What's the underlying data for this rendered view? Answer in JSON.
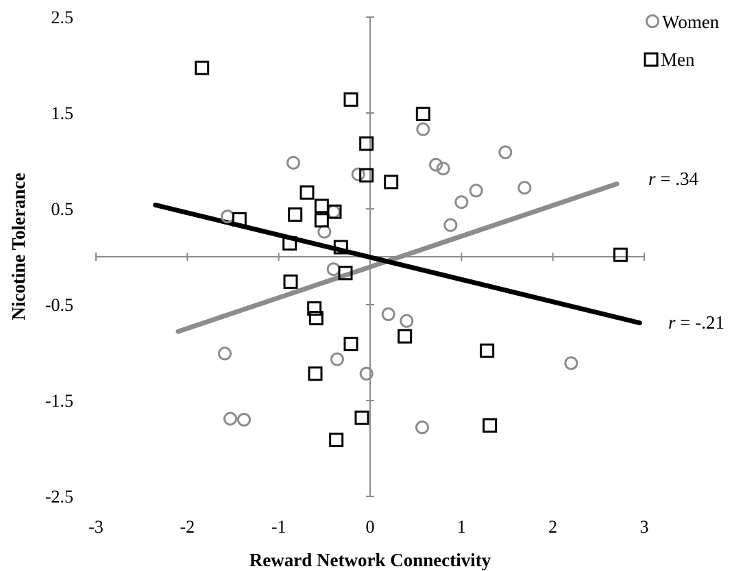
{
  "chart_data": {
    "type": "scatter",
    "xlabel": "Reward Network Connectivity",
    "ylabel": "Nicotine Tolerance",
    "xlim": [
      -3,
      3
    ],
    "ylim": [
      -2.5,
      2.5
    ],
    "x_ticks": [
      -3,
      -2,
      -1,
      0,
      1,
      2,
      3
    ],
    "y_ticks": [
      2.5,
      1.5,
      0.5,
      -0.5,
      -1.5,
      -2.5
    ],
    "x_tick_labels": [
      "-3",
      "-2",
      "-1",
      "0",
      "1",
      "2",
      "3"
    ],
    "y_tick_labels": [
      "2.5",
      "1.5",
      "0.5",
      "-0.5",
      "-1.5",
      "-2.5"
    ],
    "grid": false,
    "legend_position": "top-right",
    "series": [
      {
        "name": "Women",
        "marker": "circle",
        "color": "#8c8c8c",
        "points": [
          [
            -0.84,
            0.98
          ],
          [
            -1.56,
            0.42
          ],
          [
            -0.5,
            0.26
          ],
          [
            -0.4,
            0.47
          ],
          [
            -0.13,
            0.86
          ],
          [
            0.58,
            1.33
          ],
          [
            0.72,
            0.96
          ],
          [
            0.8,
            0.92
          ],
          [
            1.48,
            1.09
          ],
          [
            1.16,
            0.69
          ],
          [
            1.0,
            0.57
          ],
          [
            0.88,
            0.33
          ],
          [
            1.69,
            0.72
          ],
          [
            -0.4,
            -0.13
          ],
          [
            0.2,
            -0.6
          ],
          [
            0.4,
            -0.67
          ],
          [
            -0.36,
            -1.07
          ],
          [
            -1.59,
            -1.01
          ],
          [
            -0.04,
            -1.22
          ],
          [
            2.2,
            -1.11
          ],
          [
            -1.53,
            -1.69
          ],
          [
            -1.38,
            -1.7
          ],
          [
            0.57,
            -1.78
          ]
        ]
      },
      {
        "name": "Men",
        "marker": "square",
        "color": "#000000",
        "points": [
          [
            -1.84,
            1.97
          ],
          [
            -0.21,
            1.64
          ],
          [
            0.58,
            1.49
          ],
          [
            -0.04,
            1.18
          ],
          [
            -0.04,
            0.85
          ],
          [
            0.23,
            0.78
          ],
          [
            -0.69,
            0.67
          ],
          [
            -0.53,
            0.53
          ],
          [
            -0.39,
            0.47
          ],
          [
            -0.82,
            0.44
          ],
          [
            -1.43,
            0.39
          ],
          [
            -0.53,
            0.38
          ],
          [
            -0.88,
            0.14
          ],
          [
            -0.32,
            0.1
          ],
          [
            2.74,
            0.02
          ],
          [
            -0.27,
            -0.17
          ],
          [
            -0.87,
            -0.26
          ],
          [
            -0.61,
            -0.54
          ],
          [
            -0.59,
            -0.64
          ],
          [
            -0.21,
            -0.91
          ],
          [
            0.38,
            -0.83
          ],
          [
            1.28,
            -0.98
          ],
          [
            -0.6,
            -1.22
          ],
          [
            -0.09,
            -1.68
          ],
          [
            -0.37,
            -1.91
          ],
          [
            1.31,
            -1.76
          ]
        ]
      }
    ],
    "trendlines": [
      {
        "name": "Women",
        "color": "#8c8c8c",
        "x": [
          -2.1,
          2.7
        ],
        "y": [
          -0.78,
          0.76
        ],
        "label": "r = .34",
        "label_r": "r",
        "label_rest": " = .34"
      },
      {
        "name": "Men",
        "color": "#000000",
        "x": [
          -2.35,
          2.95
        ],
        "y": [
          0.54,
          -0.69
        ],
        "label": "r = -.21",
        "label_r": "r",
        "label_rest": " = -.21"
      }
    ]
  }
}
